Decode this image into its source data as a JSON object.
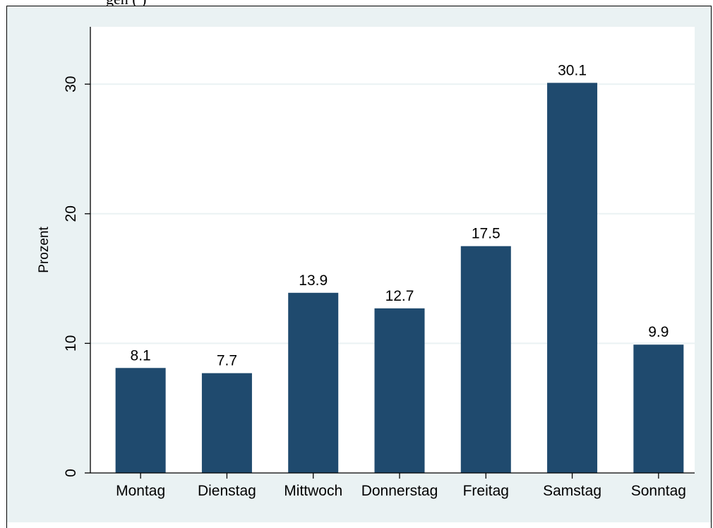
{
  "header_fragment": "gen   (    )",
  "chart_data": {
    "type": "bar",
    "categories": [
      "Montag",
      "Dienstag",
      "Mittwoch",
      "Donnerstag",
      "Freitag",
      "Samstag",
      "Sonntag"
    ],
    "values": [
      8.1,
      7.7,
      13.9,
      12.7,
      17.5,
      30.1,
      9.9
    ],
    "value_labels": [
      "8.1",
      "7.7",
      "13.9",
      "12.7",
      "17.5",
      "30.1",
      "9.9"
    ],
    "title": "",
    "xlabel": "",
    "ylabel": "Prozent",
    "ylim": [
      0,
      35
    ],
    "yticks": [
      0,
      10,
      20,
      30
    ],
    "ytick_labels": [
      "0",
      "10",
      "20",
      "30"
    ],
    "grid": true,
    "colors": {
      "bar": "#1f4a6e",
      "background": "#eaf2f3",
      "plot": "#ffffff",
      "grid": "#eaf2f3"
    }
  }
}
